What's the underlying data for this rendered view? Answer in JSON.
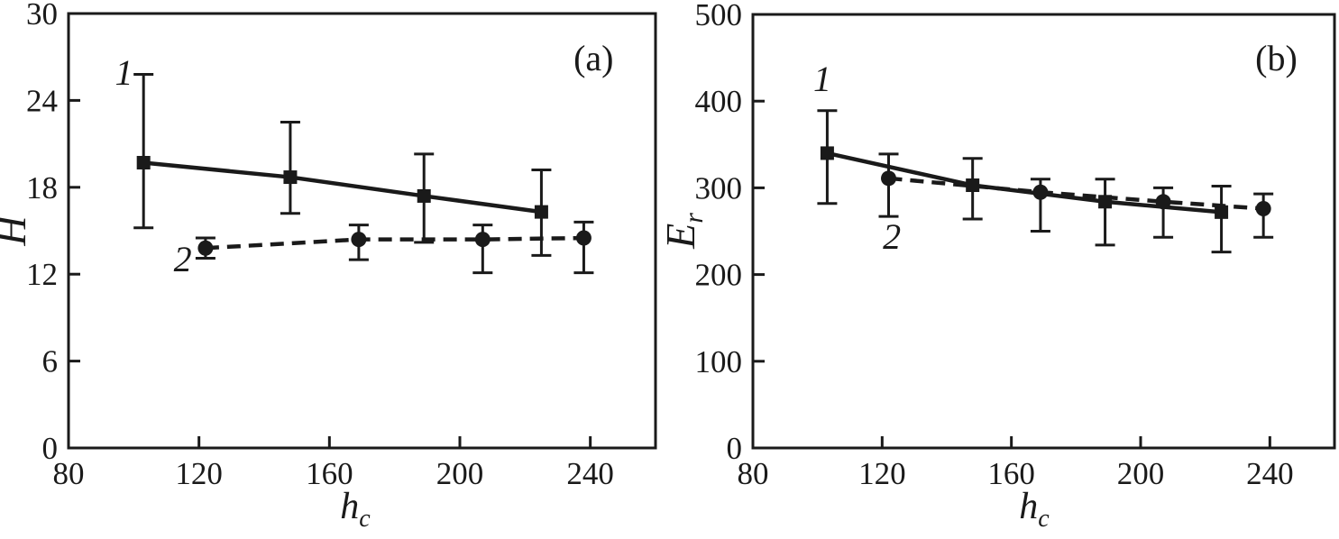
{
  "figure": {
    "background": "#ffffff",
    "ink": "#1a1a1a"
  },
  "chart_data": [
    {
      "type": "line",
      "panel_tag": "(a)",
      "xlabel": "h_c",
      "ylabel": "H",
      "xlim": [
        80,
        260
      ],
      "ylim": [
        0,
        30
      ],
      "x_ticks": [
        80,
        120,
        160,
        200,
        240
      ],
      "y_ticks": [
        0,
        6,
        12,
        18,
        24,
        30
      ],
      "grid": false,
      "legend": "inline numeric series labels",
      "series": [
        {
          "name": "1",
          "marker": "square",
          "line": "solid",
          "points": [
            {
              "x": 103,
              "y": 19.7,
              "err_lo": 15.2,
              "err_hi": 25.8
            },
            {
              "x": 148,
              "y": 18.7,
              "err_lo": 16.2,
              "err_hi": 22.5
            },
            {
              "x": 189,
              "y": 17.4,
              "err_lo": 14.2,
              "err_hi": 20.3
            },
            {
              "x": 225,
              "y": 16.3,
              "err_lo": 13.3,
              "err_hi": 19.2
            }
          ]
        },
        {
          "name": "2",
          "marker": "circle",
          "line": "dashed",
          "points": [
            {
              "x": 122,
              "y": 13.8,
              "err_lo": 13.1,
              "err_hi": 14.5
            },
            {
              "x": 169,
              "y": 14.4,
              "err_lo": 13.0,
              "err_hi": 15.4
            },
            {
              "x": 207,
              "y": 14.4,
              "err_lo": 12.1,
              "err_hi": 15.4
            },
            {
              "x": 238,
              "y": 14.5,
              "err_lo": 12.1,
              "err_hi": 15.6
            }
          ]
        }
      ],
      "annotations": [
        {
          "text": "1",
          "x": 97,
          "y": 25.9,
          "style": "italic"
        },
        {
          "text": "2",
          "x": 115,
          "y": 13.0,
          "style": "italic"
        },
        {
          "text": "(a)",
          "x": 241,
          "y": 26.9,
          "style": "normal"
        }
      ]
    },
    {
      "type": "line",
      "panel_tag": "(b)",
      "xlabel": "h_c",
      "ylabel": "E_r",
      "xlim": [
        80,
        260
      ],
      "ylim": [
        0,
        500
      ],
      "x_ticks": [
        80,
        120,
        160,
        200,
        240
      ],
      "y_ticks": [
        0,
        100,
        200,
        300,
        400,
        500
      ],
      "grid": false,
      "legend": "inline numeric series labels",
      "series": [
        {
          "name": "1",
          "marker": "square",
          "line": "solid",
          "points": [
            {
              "x": 103,
              "y": 340,
              "err_lo": 282,
              "err_hi": 389
            },
            {
              "x": 148,
              "y": 303,
              "err_lo": 264,
              "err_hi": 334
            },
            {
              "x": 189,
              "y": 284,
              "err_lo": 234,
              "err_hi": 310
            },
            {
              "x": 225,
              "y": 272,
              "err_lo": 226,
              "err_hi": 302
            }
          ]
        },
        {
          "name": "2",
          "marker": "circle",
          "line": "dashed",
          "points": [
            {
              "x": 122,
              "y": 311,
              "err_lo": 267,
              "err_hi": 339
            },
            {
              "x": 169,
              "y": 295,
              "err_lo": 250,
              "err_hi": 310
            },
            {
              "x": 207,
              "y": 284,
              "err_lo": 243,
              "err_hi": 300
            },
            {
              "x": 238,
              "y": 276,
              "err_lo": 243,
              "err_hi": 293
            }
          ]
        }
      ],
      "annotations": [
        {
          "text": "1",
          "x": 101.5,
          "y": 425,
          "style": "italic"
        },
        {
          "text": "2",
          "x": 123,
          "y": 243,
          "style": "italic"
        },
        {
          "text": "(b)",
          "x": 242,
          "y": 449,
          "style": "normal"
        }
      ]
    }
  ]
}
